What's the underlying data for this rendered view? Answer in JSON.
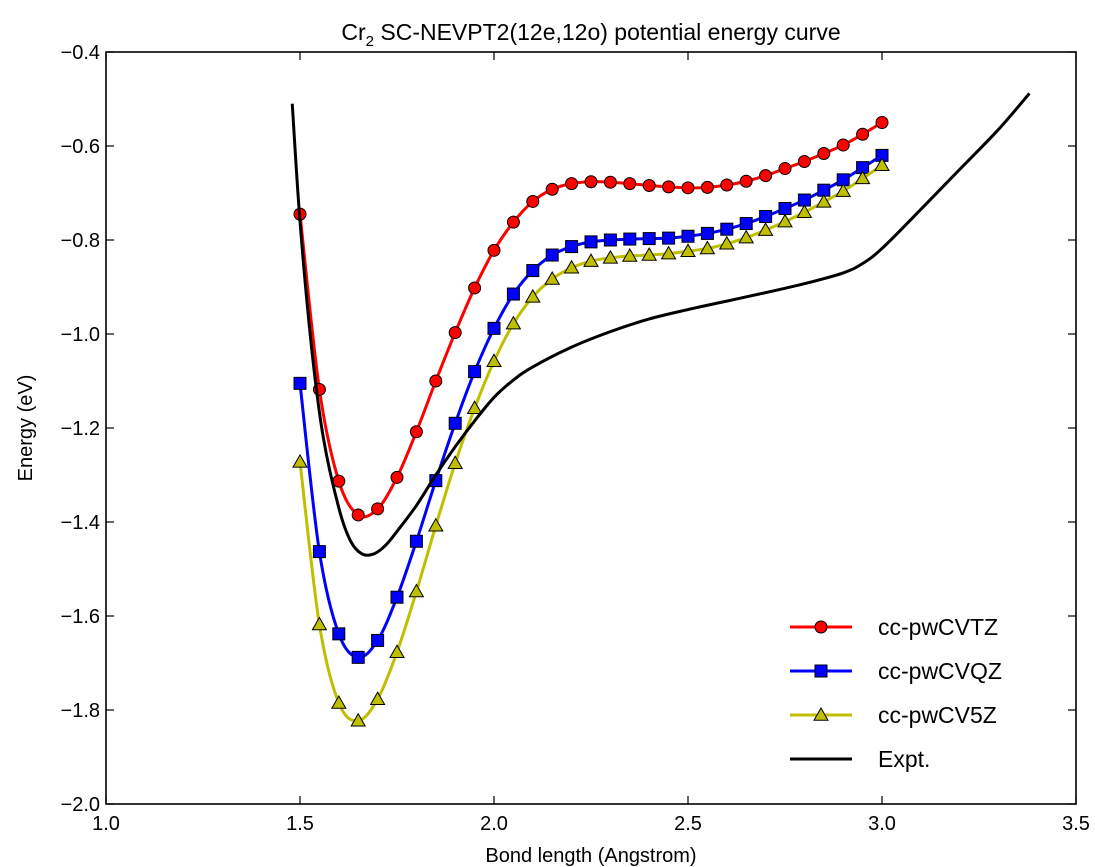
{
  "chart_data": {
    "type": "line",
    "title_main": "Cr",
    "title_sub": "2",
    "title_rest": " SC-NEVPT2(12e,12o) potential energy curve",
    "xlabel": "Bond length (Angstrom)",
    "ylabel": "Energy (eV)",
    "xlim": [
      1.0,
      3.5
    ],
    "ylim": [
      -2.0,
      -0.4
    ],
    "xticks": [
      1.0,
      1.5,
      2.0,
      2.5,
      3.0,
      3.5
    ],
    "xtick_labels": [
      "1.0",
      "1.5",
      "2.0",
      "2.5",
      "3.0",
      "3.5"
    ],
    "yticks": [
      -2.0,
      -1.8,
      -1.6,
      -1.4,
      -1.2,
      -1.0,
      -0.8,
      -0.6,
      -0.4
    ],
    "ytick_labels": [
      "−2.0",
      "−1.8",
      "−1.6",
      "−1.4",
      "−1.2",
      "−1.0",
      "−0.8",
      "−0.6",
      "−0.4"
    ],
    "grid": false,
    "legend_position": "lower-right",
    "series": [
      {
        "name": "cc-pwCVTZ",
        "color": "#ff0000",
        "marker": "circle",
        "marker_color": "#ff0000",
        "points": [
          [
            1.5,
            -0.745
          ],
          [
            1.55,
            -1.118
          ],
          [
            1.6,
            -1.313
          ],
          [
            1.65,
            -1.385
          ],
          [
            1.7,
            -1.372
          ],
          [
            1.75,
            -1.305
          ],
          [
            1.8,
            -1.208
          ],
          [
            1.85,
            -1.1
          ],
          [
            1.9,
            -0.997
          ],
          [
            1.95,
            -0.902
          ],
          [
            2.0,
            -0.822
          ],
          [
            2.05,
            -0.762
          ],
          [
            2.1,
            -0.718
          ],
          [
            2.15,
            -0.692
          ],
          [
            2.2,
            -0.68
          ],
          [
            2.25,
            -0.676
          ],
          [
            2.3,
            -0.677
          ],
          [
            2.35,
            -0.68
          ],
          [
            2.4,
            -0.684
          ],
          [
            2.45,
            -0.687
          ],
          [
            2.5,
            -0.689
          ],
          [
            2.55,
            -0.688
          ],
          [
            2.6,
            -0.683
          ],
          [
            2.65,
            -0.675
          ],
          [
            2.7,
            -0.663
          ],
          [
            2.75,
            -0.648
          ],
          [
            2.8,
            -0.633
          ],
          [
            2.85,
            -0.616
          ],
          [
            2.9,
            -0.598
          ],
          [
            2.95,
            -0.575
          ],
          [
            3.0,
            -0.55
          ]
        ]
      },
      {
        "name": "cc-pwCVQZ",
        "color": "#0000ff",
        "marker": "square",
        "marker_color": "#0000ff",
        "points": [
          [
            1.5,
            -1.105
          ],
          [
            1.55,
            -1.463
          ],
          [
            1.6,
            -1.638
          ],
          [
            1.65,
            -1.688
          ],
          [
            1.7,
            -1.652
          ],
          [
            1.75,
            -1.56
          ],
          [
            1.8,
            -1.441
          ],
          [
            1.85,
            -1.312
          ],
          [
            1.9,
            -1.19
          ],
          [
            1.95,
            -1.08
          ],
          [
            2.0,
            -0.988
          ],
          [
            2.05,
            -0.915
          ],
          [
            2.1,
            -0.865
          ],
          [
            2.15,
            -0.832
          ],
          [
            2.2,
            -0.814
          ],
          [
            2.25,
            -0.804
          ],
          [
            2.3,
            -0.8
          ],
          [
            2.35,
            -0.798
          ],
          [
            2.4,
            -0.797
          ],
          [
            2.45,
            -0.796
          ],
          [
            2.5,
            -0.792
          ],
          [
            2.55,
            -0.786
          ],
          [
            2.6,
            -0.777
          ],
          [
            2.65,
            -0.765
          ],
          [
            2.7,
            -0.75
          ],
          [
            2.75,
            -0.733
          ],
          [
            2.8,
            -0.715
          ],
          [
            2.85,
            -0.694
          ],
          [
            2.9,
            -0.672
          ],
          [
            2.95,
            -0.646
          ],
          [
            3.0,
            -0.62
          ]
        ]
      },
      {
        "name": "cc-pwCV5Z",
        "color": "#bfbf00",
        "marker": "triangle",
        "marker_color": "#bfbf00",
        "points": [
          [
            1.5,
            -1.272
          ],
          [
            1.55,
            -1.618
          ],
          [
            1.6,
            -1.785
          ],
          [
            1.65,
            -1.823
          ],
          [
            1.7,
            -1.777
          ],
          [
            1.75,
            -1.677
          ],
          [
            1.8,
            -1.548
          ],
          [
            1.85,
            -1.408
          ],
          [
            1.9,
            -1.275
          ],
          [
            1.95,
            -1.158
          ],
          [
            2.0,
            -1.058
          ],
          [
            2.05,
            -0.978
          ],
          [
            2.1,
            -0.921
          ],
          [
            2.15,
            -0.883
          ],
          [
            2.2,
            -0.859
          ],
          [
            2.25,
            -0.845
          ],
          [
            2.3,
            -0.838
          ],
          [
            2.35,
            -0.834
          ],
          [
            2.4,
            -0.832
          ],
          [
            2.45,
            -0.829
          ],
          [
            2.5,
            -0.824
          ],
          [
            2.55,
            -0.818
          ],
          [
            2.6,
            -0.808
          ],
          [
            2.65,
            -0.795
          ],
          [
            2.7,
            -0.779
          ],
          [
            2.75,
            -0.761
          ],
          [
            2.8,
            -0.741
          ],
          [
            2.85,
            -0.719
          ],
          [
            2.9,
            -0.696
          ],
          [
            2.95,
            -0.669
          ],
          [
            3.0,
            -0.641
          ]
        ]
      },
      {
        "name": "Expt.",
        "color": "#000000",
        "marker": "none",
        "points": [
          [
            1.48,
            -0.51
          ],
          [
            1.5,
            -0.76
          ],
          [
            1.53,
            -1.03
          ],
          [
            1.56,
            -1.22
          ],
          [
            1.6,
            -1.37
          ],
          [
            1.63,
            -1.44
          ],
          [
            1.66,
            -1.468
          ],
          [
            1.69,
            -1.468
          ],
          [
            1.72,
            -1.45
          ],
          [
            1.75,
            -1.42
          ],
          [
            1.8,
            -1.365
          ],
          [
            1.85,
            -1.3
          ],
          [
            1.9,
            -1.24
          ],
          [
            1.95,
            -1.185
          ],
          [
            2.0,
            -1.135
          ],
          [
            2.05,
            -1.098
          ],
          [
            2.1,
            -1.07
          ],
          [
            2.2,
            -1.028
          ],
          [
            2.3,
            -0.995
          ],
          [
            2.4,
            -0.968
          ],
          [
            2.5,
            -0.948
          ],
          [
            2.6,
            -0.93
          ],
          [
            2.7,
            -0.912
          ],
          [
            2.8,
            -0.893
          ],
          [
            2.9,
            -0.87
          ],
          [
            2.95,
            -0.85
          ],
          [
            3.0,
            -0.818
          ],
          [
            3.1,
            -0.735
          ],
          [
            3.2,
            -0.65
          ],
          [
            3.3,
            -0.565
          ],
          [
            3.38,
            -0.488
          ]
        ]
      }
    ]
  }
}
